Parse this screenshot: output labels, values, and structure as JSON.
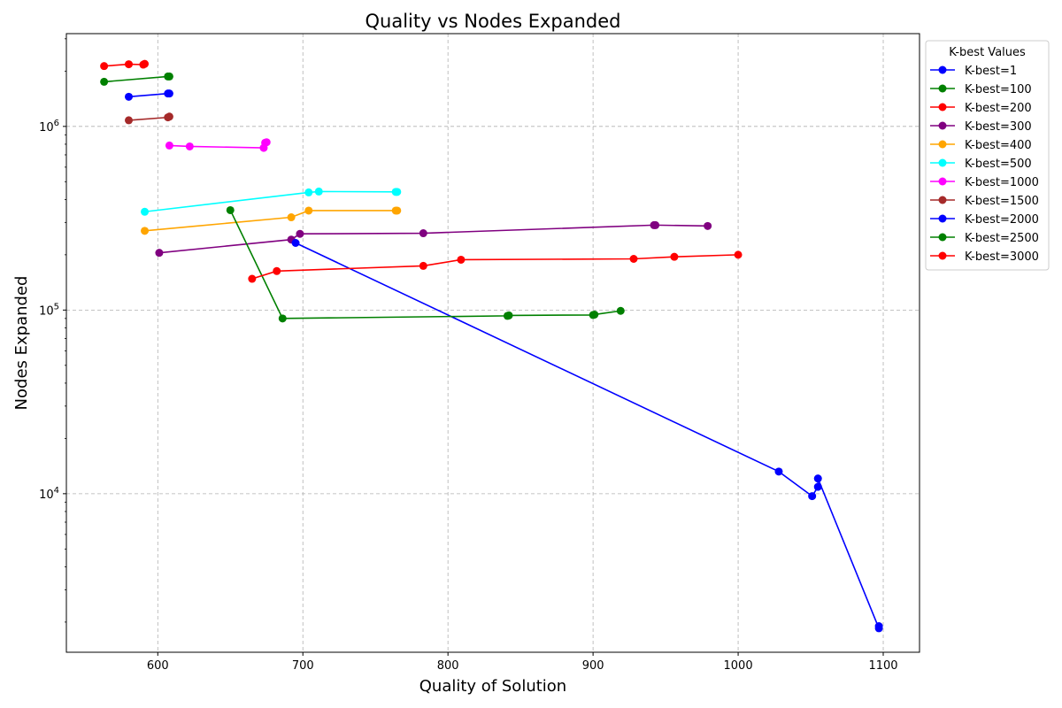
{
  "chart_data": {
    "type": "line",
    "title": "Quality vs Nodes Expanded",
    "xlabel": "Quality of Solution",
    "ylabel": "Nodes Expanded",
    "xlim": [
      537,
      1125
    ],
    "ylim": [
      1370,
      3200000
    ],
    "yscale": "log",
    "grid": true,
    "legend_title": "K-best Values",
    "legend_position": "outside-top-right",
    "x_ticks": [
      600,
      700,
      800,
      900,
      1000,
      1100
    ],
    "x_tick_labels": [
      "600",
      "700",
      "800",
      "900",
      "1000",
      "1100"
    ],
    "y_ticks": [
      10000,
      100000,
      1000000
    ],
    "y_tick_labels": [
      "10⁴",
      "10⁵",
      "10⁶"
    ],
    "y_tick_labels_parts": [
      {
        "base": "10",
        "exp": "4"
      },
      {
        "base": "10",
        "exp": "5"
      },
      {
        "base": "10",
        "exp": "6"
      }
    ],
    "series": [
      {
        "name": "K-best=1",
        "color": "#0000ff",
        "points": [
          [
            580,
            1450000
          ],
          [
            607,
            1510000
          ],
          [
            608,
            1510000
          ]
        ]
      },
      {
        "name": "K-best=100",
        "color": "#008000",
        "points": [
          [
            563,
            1750000
          ],
          [
            607,
            1870000
          ],
          [
            608,
            1870000
          ]
        ]
      },
      {
        "name": "K-best=200",
        "color": "#ff0000",
        "points": [
          [
            563,
            2130000
          ],
          [
            580,
            2180000
          ],
          [
            590,
            2170000
          ],
          [
            591,
            2190000
          ]
        ]
      },
      {
        "name": "K-best=300",
        "color": "#800080",
        "points": [
          [
            601,
            205000
          ],
          [
            692,
            242000
          ],
          [
            698,
            260000
          ],
          [
            783,
            262000
          ],
          [
            942,
            290000
          ],
          [
            943,
            290000
          ],
          [
            979,
            287000
          ]
        ]
      },
      {
        "name": "K-best=400",
        "color": "#ffa500",
        "points": [
          [
            591,
            270000
          ],
          [
            692,
            320000
          ],
          [
            704,
            348000
          ],
          [
            764,
            348000
          ],
          [
            765,
            348000
          ]
        ]
      },
      {
        "name": "K-best=500",
        "color": "#00ffff",
        "points": [
          [
            591,
            343000
          ],
          [
            704,
            437000
          ],
          [
            711,
            442000
          ],
          [
            764,
            440000
          ],
          [
            765,
            440000
          ]
        ]
      },
      {
        "name": "K-best=1000",
        "color": "#ff00ff",
        "points": [
          [
            608,
            787000
          ],
          [
            622,
            778000
          ],
          [
            673,
            764000
          ],
          [
            674,
            815000
          ],
          [
            675,
            820000
          ]
        ]
      },
      {
        "name": "K-best=1500",
        "color": "#a52a2a",
        "points": [
          [
            580,
            1080000
          ],
          [
            607,
            1120000
          ],
          [
            608,
            1130000
          ]
        ]
      },
      {
        "name": "K-best=2000",
        "color": "#0000ff",
        "points": [
          [
            695,
            232000
          ],
          [
            1028,
            13200
          ],
          [
            1051,
            9700
          ],
          [
            1055,
            10900
          ],
          [
            1055,
            12100
          ],
          [
            1097,
            1850
          ],
          [
            1097,
            1900
          ]
        ]
      },
      {
        "name": "K-best=2500",
        "color": "#008000",
        "points": [
          [
            650,
            350000
          ],
          [
            686,
            90000
          ],
          [
            841,
            93000
          ],
          [
            842,
            93500
          ],
          [
            900,
            94000
          ],
          [
            901,
            94500
          ],
          [
            919,
            99000
          ]
        ]
      },
      {
        "name": "K-best=3000",
        "color": "#ff0000",
        "points": [
          [
            665,
            148000
          ],
          [
            682,
            163000
          ],
          [
            783,
            174000
          ],
          [
            809,
            188000
          ],
          [
            928,
            190000
          ],
          [
            956,
            195000
          ],
          [
            1000,
            200000
          ]
        ]
      }
    ]
  }
}
